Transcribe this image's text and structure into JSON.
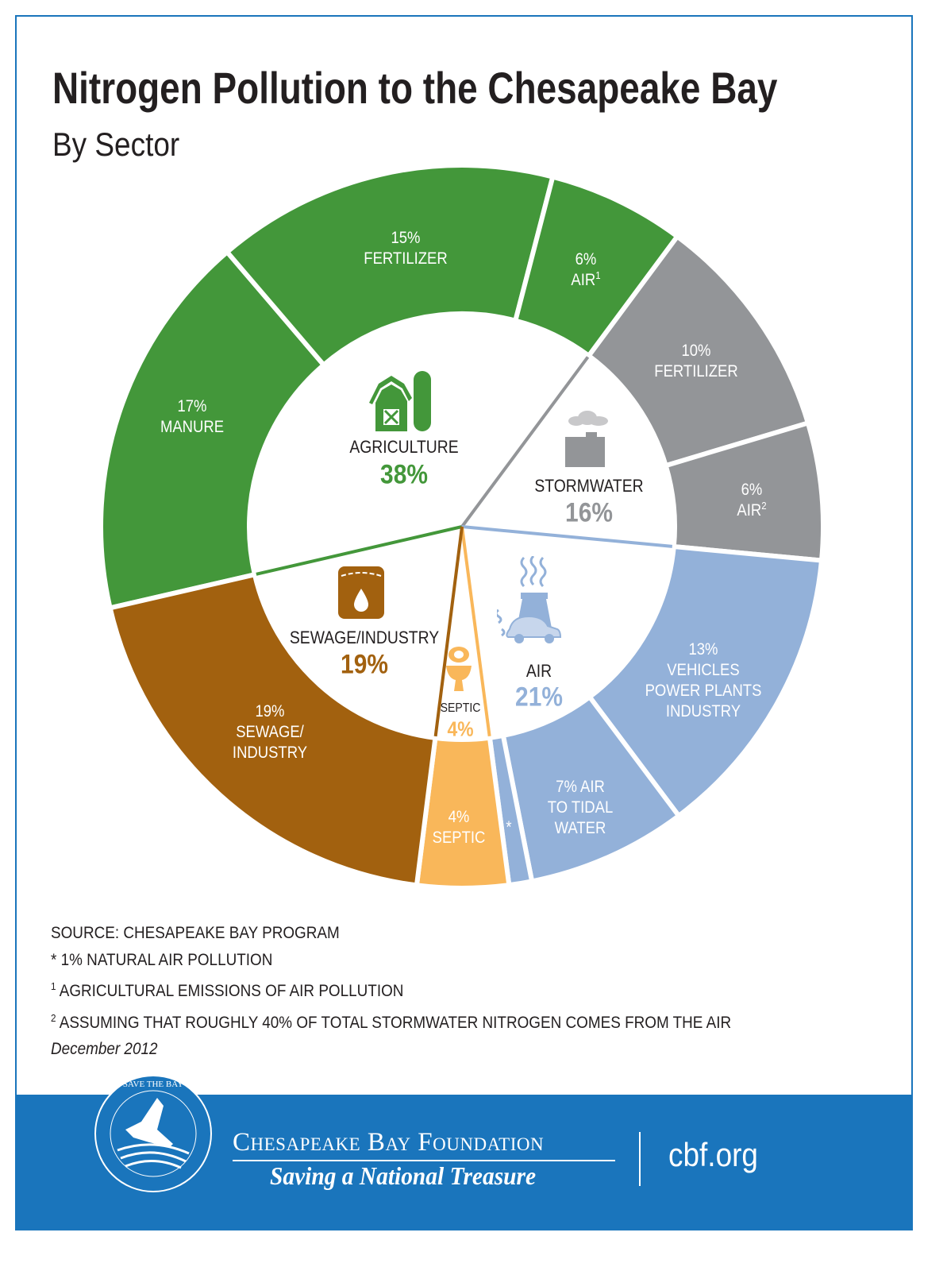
{
  "chart_data": {
    "type": "pie",
    "title": "Nitrogen Pollution to the Chesapeake Bay",
    "subtitle": "By Sector",
    "inner": [
      {
        "name": "AGRICULTURE",
        "value": 38,
        "pct": "38%",
        "color": "#43973a",
        "icon": "barn-silo-icon"
      },
      {
        "name": "STORMWATER",
        "value": 16,
        "pct": "16%",
        "color": "#939598",
        "icon": "building-cloud-icon"
      },
      {
        "name": "AIR",
        "value": 21,
        "pct": "21%",
        "color": "#93b1d9",
        "icon": "power-plant-car-icon"
      },
      {
        "name": "SEPTIC",
        "value": 4,
        "pct": "4%",
        "color": "#f9b75a",
        "icon": "toilet-icon"
      },
      {
        "name": "SEWAGE/INDUSTRY",
        "value": 19,
        "pct": "19%",
        "color": "#a2610f",
        "icon": "tank-drop-icon"
      }
    ],
    "outer": [
      {
        "text": "17%\nMANURE",
        "value": 17,
        "sector": "AGRICULTURE",
        "color": "#43973a"
      },
      {
        "text": "15%\nFERTILIZER",
        "value": 15,
        "sector": "AGRICULTURE",
        "color": "#43973a"
      },
      {
        "text": "6%\nAIR",
        "sup": "1",
        "value": 6,
        "sector": "AGRICULTURE",
        "color": "#43973a"
      },
      {
        "text": "10%\nFERTILIZER",
        "value": 10,
        "sector": "STORMWATER",
        "color": "#939598"
      },
      {
        "text": "6%\nAIR",
        "sup": "2",
        "value": 6,
        "sector": "STORMWATER",
        "color": "#939598"
      },
      {
        "text": "13%\nVEHICLES\nPOWER PLANTS\nINDUSTRY",
        "value": 13,
        "sector": "AIR",
        "color": "#93b1d9"
      },
      {
        "text": "7% AIR\nTO TIDAL\nWATER",
        "value": 7,
        "sector": "AIR",
        "color": "#93b1d9"
      },
      {
        "text": "*",
        "value": 1,
        "sector": "AIR",
        "color": "#93b1d9"
      },
      {
        "text": "4%\nSEPTIC",
        "value": 4,
        "sector": "SEPTIC",
        "color": "#f9b75a"
      },
      {
        "text": "19%\nSEWAGE/\nINDUSTRY",
        "value": 19,
        "sector": "SEWAGE/INDUSTRY",
        "color": "#a2610f"
      }
    ]
  },
  "notes": {
    "source": "SOURCE: CHESAPEAKE BAY PROGRAM",
    "n_star": "* 1% NATURAL AIR POLLUTION",
    "n1_mark": "1",
    "n1": " AGRICULTURAL EMISSIONS OF AIR POLLUTION",
    "n2_mark": "2",
    "n2": " ASSUMING THAT ROUGHLY 40% OF TOTAL STORMWATER NITROGEN COMES FROM THE AIR",
    "date": "December 2012"
  },
  "footer": {
    "logo_text": "SAVE THE BAY",
    "org": "Chesapeake Bay Foundation",
    "tagline": "Saving a National Treasure",
    "url": "cbf.org",
    "color": "#1a75bc"
  }
}
